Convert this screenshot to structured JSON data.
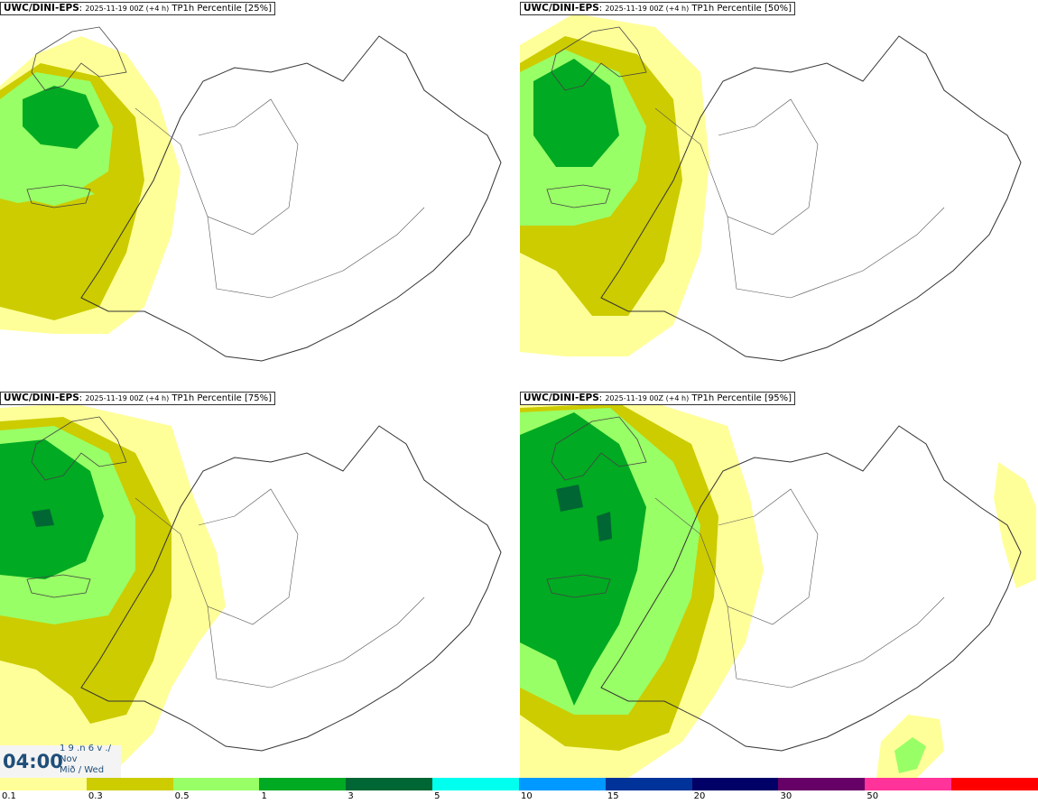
{
  "panels": [
    {
      "model": "UWC/DINI-EPS",
      "detail": "2025-11-19 00Z (+4 h)",
      "product": "TP1h Percentile",
      "pct": "[25%]"
    },
    {
      "model": "UWC/DINI-EPS",
      "detail": "2025-11-19 00Z (+4 h)",
      "product": "TP1h Percentile",
      "pct": "[50%]"
    },
    {
      "model": "UWC/DINI-EPS",
      "detail": "2025-11-19 00Z (+4 h)",
      "product": "TP1h Percentile",
      "pct": "[75%]"
    },
    {
      "model": "UWC/DINI-EPS",
      "detail": "2025-11-19 00Z (+4 h)",
      "product": "TP1h Percentile",
      "pct": "[95%]"
    }
  ],
  "valid": {
    "time": "04:00",
    "line1": "1 9 .n 6 v ./",
    "line2": "Nov",
    "line3": "Mið / Wed"
  },
  "legend": {
    "colors": [
      "#ffff99",
      "#cccc00",
      "#99ff66",
      "#00aa22",
      "#006633",
      "#00ffee",
      "#0099ff",
      "#003399",
      "#000066",
      "#660066",
      "#ff3399",
      "#ff0000"
    ],
    "labels": [
      "0.1",
      "0.3",
      "0.5",
      "1",
      "3",
      "5",
      "10",
      "15",
      "20",
      "30",
      "50"
    ]
  }
}
